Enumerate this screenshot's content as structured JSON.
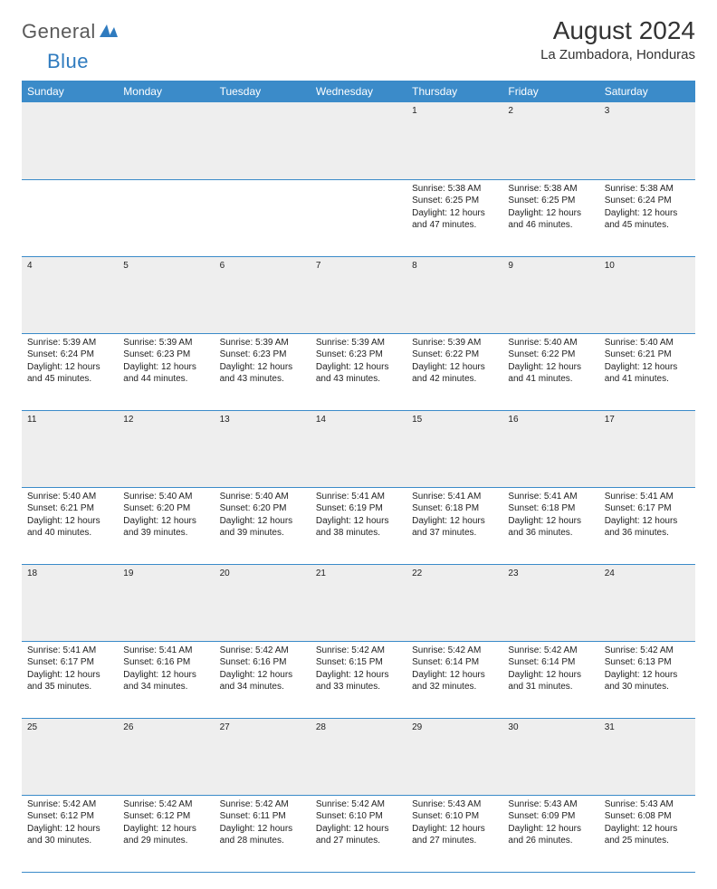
{
  "logo": {
    "general": "General",
    "blue": "Blue"
  },
  "title": "August 2024",
  "location": "La Zumbadora, Honduras",
  "colors": {
    "header_bg": "#3b8bc9",
    "header_text": "#ffffff",
    "daynum_bg": "#eeeeee",
    "border": "#3b8bc9",
    "text": "#222222"
  },
  "day_headers": [
    "Sunday",
    "Monday",
    "Tuesday",
    "Wednesday",
    "Thursday",
    "Friday",
    "Saturday"
  ],
  "weeks": [
    [
      null,
      null,
      null,
      null,
      {
        "n": "1",
        "sunrise": "5:38 AM",
        "sunset": "6:25 PM",
        "dl1": "Daylight: 12 hours",
        "dl2": "and 47 minutes."
      },
      {
        "n": "2",
        "sunrise": "5:38 AM",
        "sunset": "6:25 PM",
        "dl1": "Daylight: 12 hours",
        "dl2": "and 46 minutes."
      },
      {
        "n": "3",
        "sunrise": "5:38 AM",
        "sunset": "6:24 PM",
        "dl1": "Daylight: 12 hours",
        "dl2": "and 45 minutes."
      }
    ],
    [
      {
        "n": "4",
        "sunrise": "5:39 AM",
        "sunset": "6:24 PM",
        "dl1": "Daylight: 12 hours",
        "dl2": "and 45 minutes."
      },
      {
        "n": "5",
        "sunrise": "5:39 AM",
        "sunset": "6:23 PM",
        "dl1": "Daylight: 12 hours",
        "dl2": "and 44 minutes."
      },
      {
        "n": "6",
        "sunrise": "5:39 AM",
        "sunset": "6:23 PM",
        "dl1": "Daylight: 12 hours",
        "dl2": "and 43 minutes."
      },
      {
        "n": "7",
        "sunrise": "5:39 AM",
        "sunset": "6:23 PM",
        "dl1": "Daylight: 12 hours",
        "dl2": "and 43 minutes."
      },
      {
        "n": "8",
        "sunrise": "5:39 AM",
        "sunset": "6:22 PM",
        "dl1": "Daylight: 12 hours",
        "dl2": "and 42 minutes."
      },
      {
        "n": "9",
        "sunrise": "5:40 AM",
        "sunset": "6:22 PM",
        "dl1": "Daylight: 12 hours",
        "dl2": "and 41 minutes."
      },
      {
        "n": "10",
        "sunrise": "5:40 AM",
        "sunset": "6:21 PM",
        "dl1": "Daylight: 12 hours",
        "dl2": "and 41 minutes."
      }
    ],
    [
      {
        "n": "11",
        "sunrise": "5:40 AM",
        "sunset": "6:21 PM",
        "dl1": "Daylight: 12 hours",
        "dl2": "and 40 minutes."
      },
      {
        "n": "12",
        "sunrise": "5:40 AM",
        "sunset": "6:20 PM",
        "dl1": "Daylight: 12 hours",
        "dl2": "and 39 minutes."
      },
      {
        "n": "13",
        "sunrise": "5:40 AM",
        "sunset": "6:20 PM",
        "dl1": "Daylight: 12 hours",
        "dl2": "and 39 minutes."
      },
      {
        "n": "14",
        "sunrise": "5:41 AM",
        "sunset": "6:19 PM",
        "dl1": "Daylight: 12 hours",
        "dl2": "and 38 minutes."
      },
      {
        "n": "15",
        "sunrise": "5:41 AM",
        "sunset": "6:18 PM",
        "dl1": "Daylight: 12 hours",
        "dl2": "and 37 minutes."
      },
      {
        "n": "16",
        "sunrise": "5:41 AM",
        "sunset": "6:18 PM",
        "dl1": "Daylight: 12 hours",
        "dl2": "and 36 minutes."
      },
      {
        "n": "17",
        "sunrise": "5:41 AM",
        "sunset": "6:17 PM",
        "dl1": "Daylight: 12 hours",
        "dl2": "and 36 minutes."
      }
    ],
    [
      {
        "n": "18",
        "sunrise": "5:41 AM",
        "sunset": "6:17 PM",
        "dl1": "Daylight: 12 hours",
        "dl2": "and 35 minutes."
      },
      {
        "n": "19",
        "sunrise": "5:41 AM",
        "sunset": "6:16 PM",
        "dl1": "Daylight: 12 hours",
        "dl2": "and 34 minutes."
      },
      {
        "n": "20",
        "sunrise": "5:42 AM",
        "sunset": "6:16 PM",
        "dl1": "Daylight: 12 hours",
        "dl2": "and 34 minutes."
      },
      {
        "n": "21",
        "sunrise": "5:42 AM",
        "sunset": "6:15 PM",
        "dl1": "Daylight: 12 hours",
        "dl2": "and 33 minutes."
      },
      {
        "n": "22",
        "sunrise": "5:42 AM",
        "sunset": "6:14 PM",
        "dl1": "Daylight: 12 hours",
        "dl2": "and 32 minutes."
      },
      {
        "n": "23",
        "sunrise": "5:42 AM",
        "sunset": "6:14 PM",
        "dl1": "Daylight: 12 hours",
        "dl2": "and 31 minutes."
      },
      {
        "n": "24",
        "sunrise": "5:42 AM",
        "sunset": "6:13 PM",
        "dl1": "Daylight: 12 hours",
        "dl2": "and 30 minutes."
      }
    ],
    [
      {
        "n": "25",
        "sunrise": "5:42 AM",
        "sunset": "6:12 PM",
        "dl1": "Daylight: 12 hours",
        "dl2": "and 30 minutes."
      },
      {
        "n": "26",
        "sunrise": "5:42 AM",
        "sunset": "6:12 PM",
        "dl1": "Daylight: 12 hours",
        "dl2": "and 29 minutes."
      },
      {
        "n": "27",
        "sunrise": "5:42 AM",
        "sunset": "6:11 PM",
        "dl1": "Daylight: 12 hours",
        "dl2": "and 28 minutes."
      },
      {
        "n": "28",
        "sunrise": "5:42 AM",
        "sunset": "6:10 PM",
        "dl1": "Daylight: 12 hours",
        "dl2": "and 27 minutes."
      },
      {
        "n": "29",
        "sunrise": "5:43 AM",
        "sunset": "6:10 PM",
        "dl1": "Daylight: 12 hours",
        "dl2": "and 27 minutes."
      },
      {
        "n": "30",
        "sunrise": "5:43 AM",
        "sunset": "6:09 PM",
        "dl1": "Daylight: 12 hours",
        "dl2": "and 26 minutes."
      },
      {
        "n": "31",
        "sunrise": "5:43 AM",
        "sunset": "6:08 PM",
        "dl1": "Daylight: 12 hours",
        "dl2": "and 25 minutes."
      }
    ]
  ]
}
